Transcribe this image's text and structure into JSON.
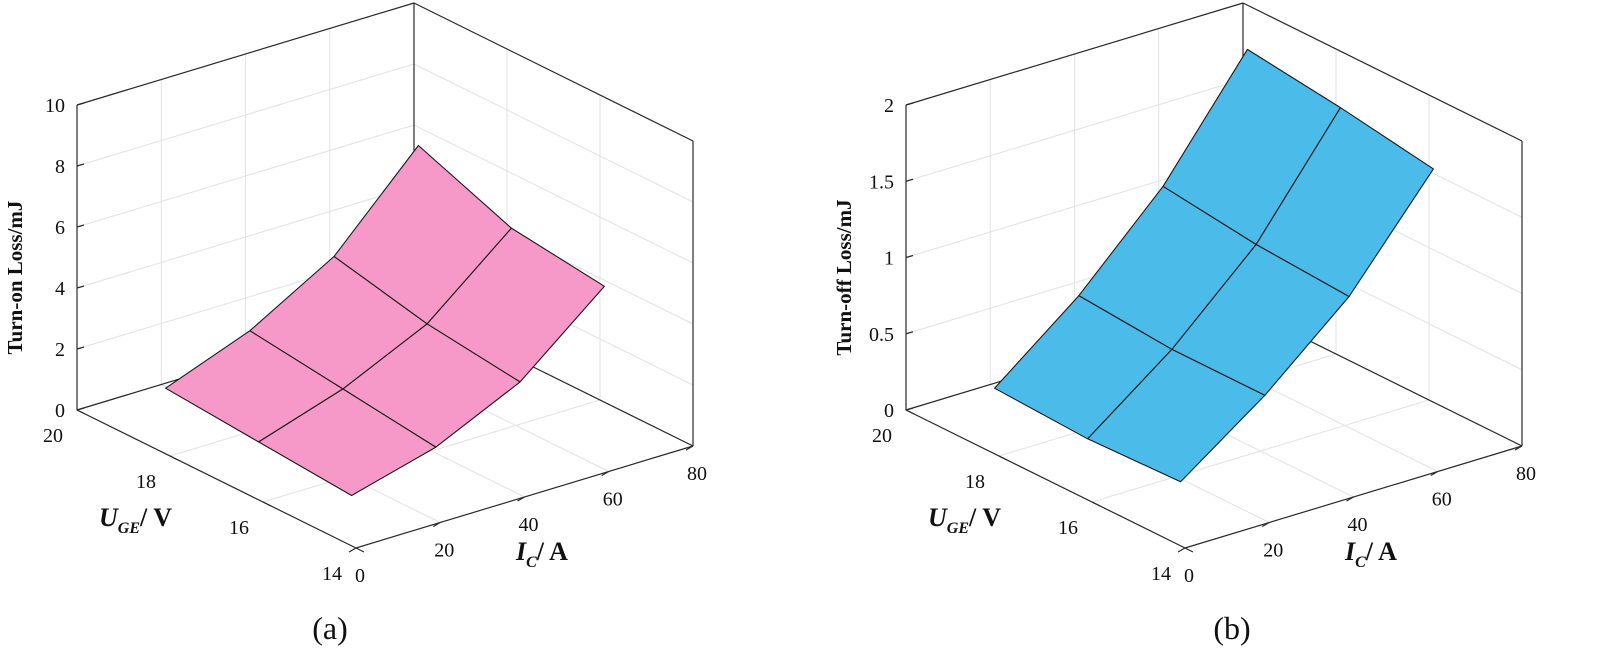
{
  "chart_data": [
    {
      "type": "surface",
      "panel_label": "(a)",
      "zlabel": "Turn-on Loss/mJ",
      "xlabel": {
        "var": "U",
        "sub": "GE",
        "unit": "/ V"
      },
      "ylabel": {
        "var": "I",
        "sub": "C",
        "unit": "/ A"
      },
      "xlim": [
        14,
        20
      ],
      "ylim": [
        0,
        80
      ],
      "zlim": [
        0,
        10
      ],
      "xticks": [
        "14",
        "16",
        "18",
        "20"
      ],
      "yticks": [
        "0",
        "20",
        "40",
        "60",
        "80"
      ],
      "zticks": [
        "0",
        "2",
        "4",
        "6",
        "8",
        "10"
      ],
      "grid": true,
      "color": "#f799c8",
      "u_values": [
        15,
        17,
        19
      ],
      "i_values": [
        10,
        30,
        50,
        70
      ],
      "z_values": [
        [
          0.55,
          1.3,
          2.6,
          4.9
        ],
        [
          0.8,
          1.7,
          3.0,
          5.3
        ],
        [
          1.05,
          2.1,
          3.7,
          6.5
        ]
      ]
    },
    {
      "type": "surface",
      "panel_label": "(b)",
      "zlabel": "Turn-off Loss/mJ",
      "xlabel": {
        "var": "U",
        "sub": "GE",
        "unit": "/ V"
      },
      "ylabel": {
        "var": "I",
        "sub": "C",
        "unit": "/ A"
      },
      "xlim": [
        14,
        20
      ],
      "ylim": [
        0,
        80
      ],
      "zlim": [
        0,
        2
      ],
      "xticks": [
        "14",
        "16",
        "18",
        "20"
      ],
      "yticks": [
        "0",
        "20",
        "40",
        "60",
        "80"
      ],
      "zticks": [
        "0",
        "0.5",
        "1",
        "1.5",
        "2"
      ],
      "grid": true,
      "color": "#4bbbea",
      "u_values": [
        15,
        17,
        19
      ],
      "i_values": [
        10,
        30,
        50,
        70
      ],
      "z_values": [
        [
          0.2,
          0.6,
          1.08,
          1.75
        ],
        [
          0.18,
          0.6,
          1.12,
          1.85
        ],
        [
          0.21,
          0.65,
          1.2,
          1.93
        ]
      ]
    }
  ]
}
